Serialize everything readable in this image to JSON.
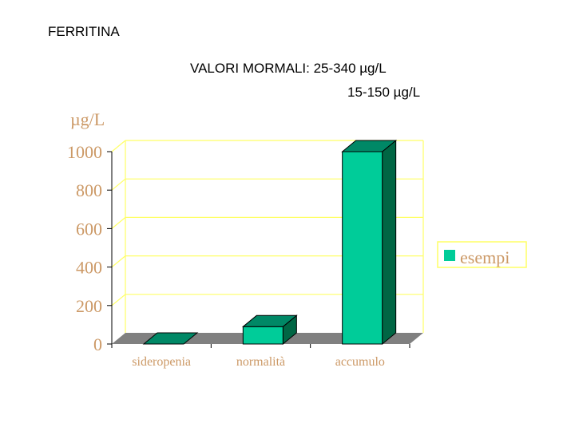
{
  "header": {
    "title": "FERRITINA",
    "normal_values_line1": "VALORI MORMALI:  25-340 µg/L",
    "normal_values_line2": "15-150  µg/L"
  },
  "colors": {
    "bar_front": "#00cc99",
    "bar_top": "#008866",
    "bar_side": "#006644",
    "axis_text": "#cc9966",
    "grid": "#ffff66",
    "floor": "#808080"
  },
  "chart_data": {
    "type": "bar",
    "unit_label": "µg/L",
    "categories": [
      "sideropenia",
      "normalità",
      "accumulo"
    ],
    "series": [
      {
        "name": "esempi",
        "values": [
          0,
          90,
          1000
        ]
      }
    ],
    "yticks": [
      "0",
      "200",
      "400",
      "600",
      "800",
      "1000"
    ],
    "ylim": [
      0,
      1000
    ],
    "grid": true,
    "legend_position": "right",
    "three_d": true
  }
}
